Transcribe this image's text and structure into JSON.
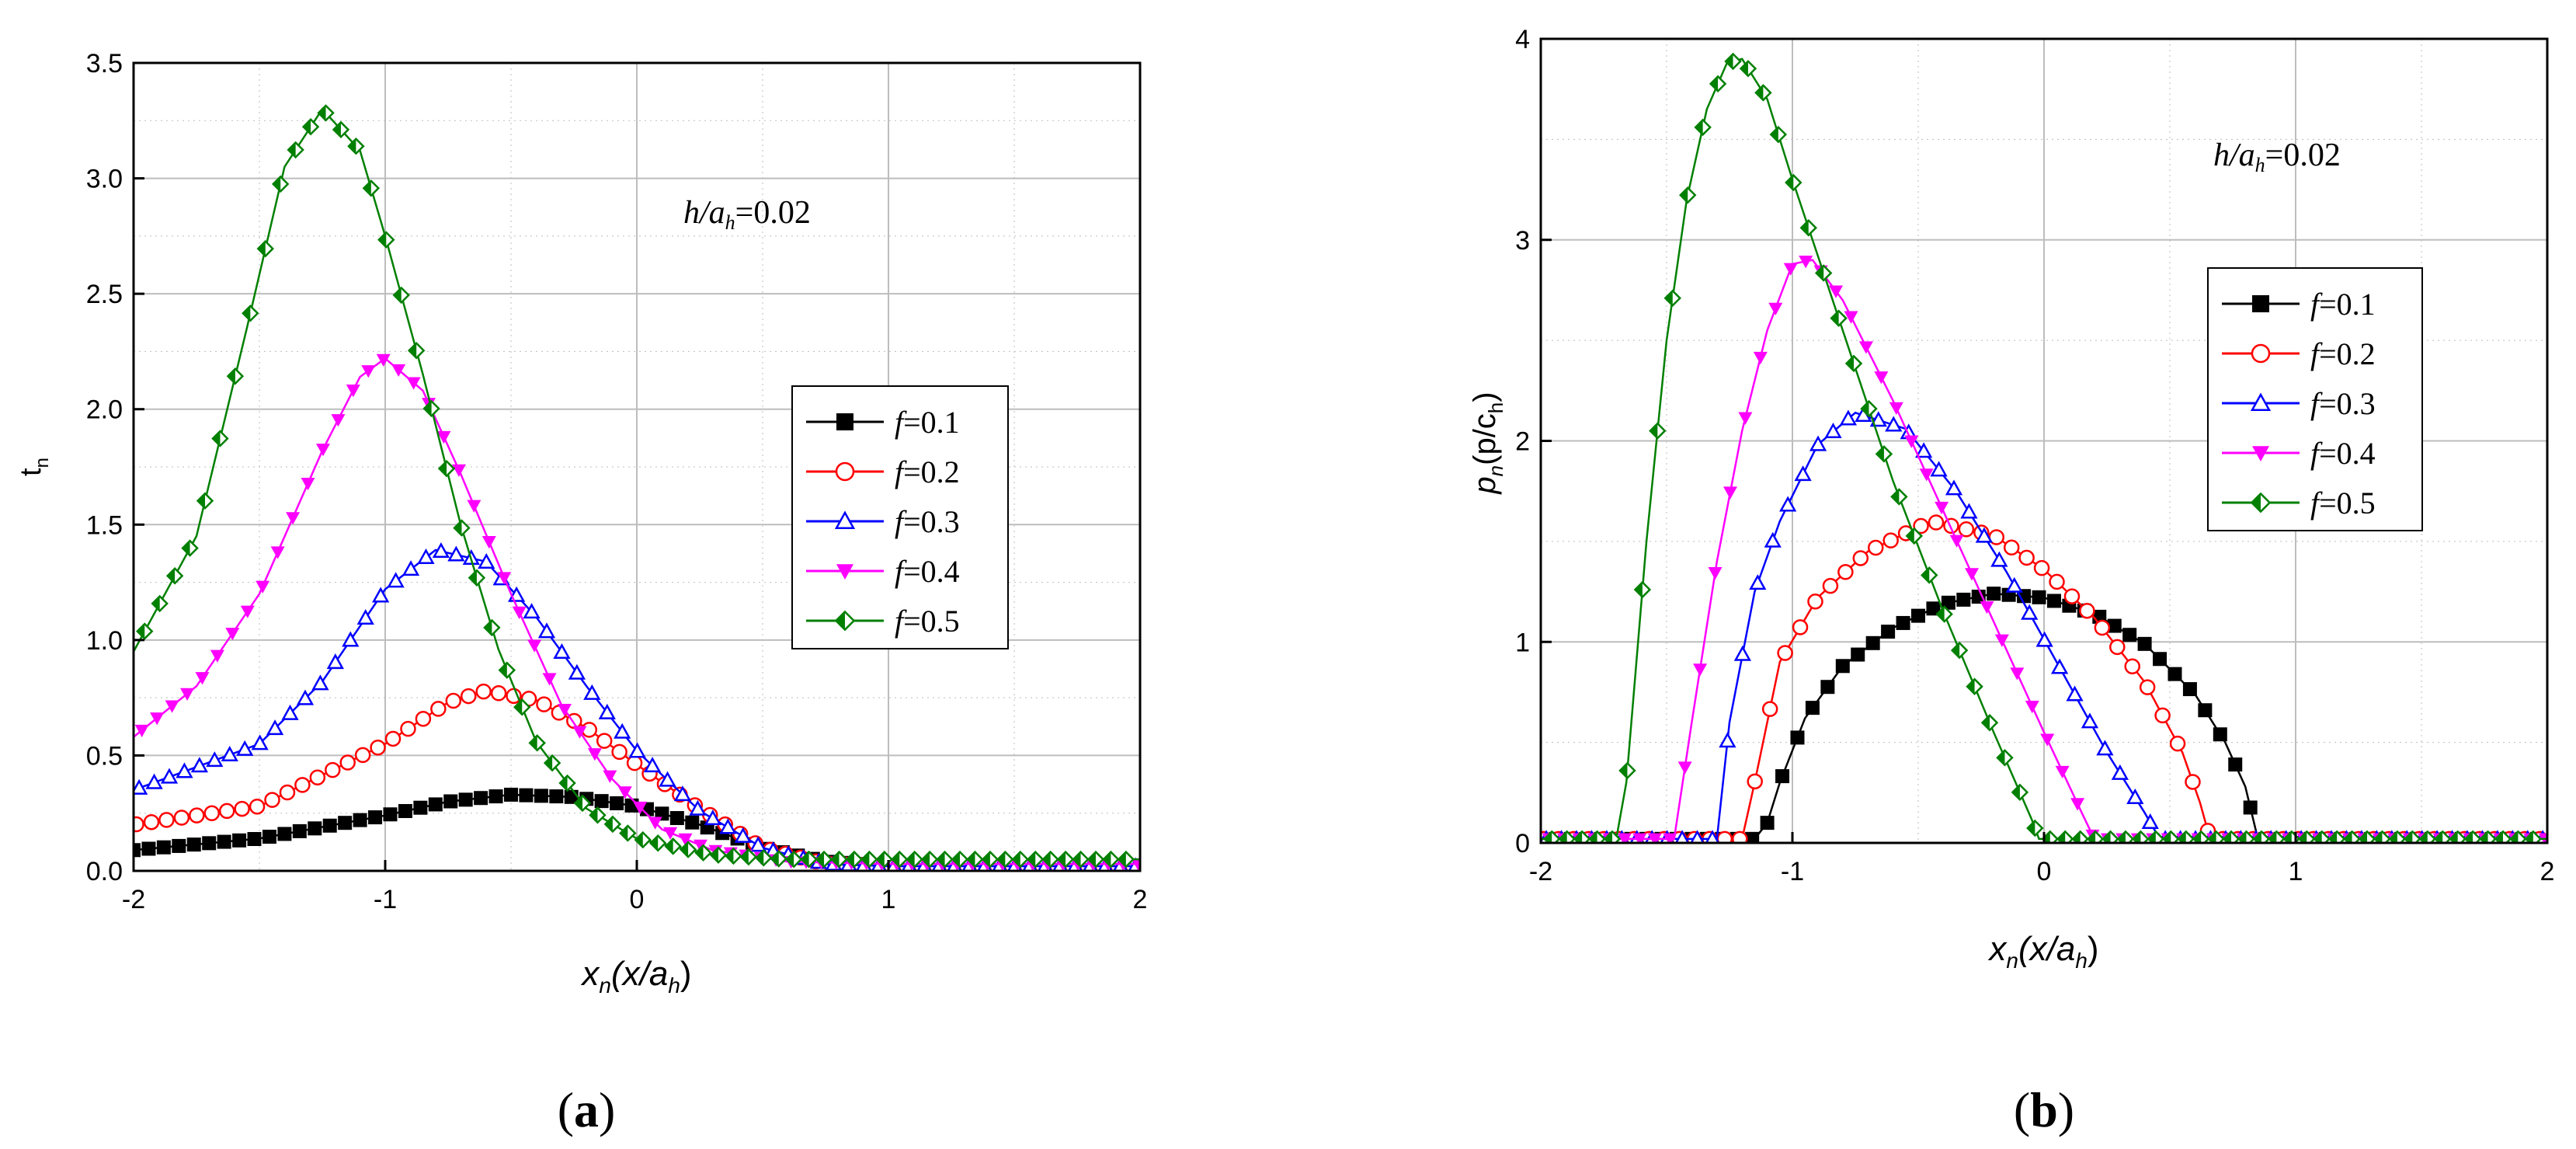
{
  "figure": {
    "panels": [
      {
        "caption_open": "(",
        "caption_letter": "a",
        "caption_close": ")",
        "annotation": {
          "italic": "h/a",
          "sub": "h",
          "rest": "=0.02"
        },
        "ylabel": {
          "main": "t",
          "sub": "n"
        },
        "xlabel": {
          "main": "x",
          "sub": "n",
          "paren": "(x/a",
          "psub": "h",
          "close": ")"
        }
      },
      {
        "caption_open": "(",
        "caption_letter": "b",
        "caption_close": ")",
        "annotation": {
          "italic": "h/a",
          "sub": "h",
          "rest": "=0.02"
        },
        "ylabel": {
          "main": "p",
          "sub": "n",
          "paren": "(p/c",
          "psub": "h",
          "close": ")"
        },
        "xlabel": {
          "main": "x",
          "sub": "n",
          "paren": "(x/a",
          "psub": "h",
          "close": ")"
        }
      }
    ]
  },
  "colors": {
    "f01": "#000000",
    "f02": "#ff0000",
    "f03": "#0000ff",
    "f04": "#ff00ff",
    "f05": "#008000",
    "grid": "#bdbdbd"
  },
  "chart_data": [
    {
      "type": "line",
      "xlim": [
        -2,
        2
      ],
      "ylim": [
        0,
        3.5
      ],
      "xticks": [
        "-2",
        "-1",
        "0",
        "1",
        "2"
      ],
      "yticks": [
        "0.0",
        "0.5",
        "1.0",
        "1.5",
        "2.0",
        "2.5",
        "3.0",
        "3.5"
      ],
      "grid": true,
      "legend_position": "right-middle",
      "series": [
        {
          "name": "f=0.1",
          "marker": "square-filled",
          "color": "#000000",
          "x": [
            -2.0,
            -1.5,
            -1.0,
            -0.75,
            -0.5,
            -0.25,
            0.0,
            0.25,
            0.5,
            0.75,
            1.0,
            2.0
          ],
          "y": [
            0.09,
            0.14,
            0.24,
            0.3,
            0.33,
            0.32,
            0.28,
            0.2,
            0.1,
            0.04,
            0.02,
            0.02
          ]
        },
        {
          "name": "f=0.2",
          "marker": "circle-open",
          "color": "#ff0000",
          "x": [
            -2.0,
            -1.5,
            -1.0,
            -0.75,
            -0.6,
            -0.4,
            -0.2,
            0.0,
            0.25,
            0.5,
            0.75,
            1.0,
            2.0
          ],
          "y": [
            0.2,
            0.28,
            0.55,
            0.73,
            0.78,
            0.74,
            0.62,
            0.46,
            0.27,
            0.1,
            0.03,
            0.02,
            0.02
          ]
        },
        {
          "name": "f=0.3",
          "marker": "triangle-up-open",
          "color": "#0000ff",
          "x": [
            -2.0,
            -1.5,
            -1.25,
            -1.0,
            -0.8,
            -0.6,
            -0.4,
            -0.2,
            0.0,
            0.25,
            0.5,
            0.75,
            1.0,
            2.0
          ],
          "y": [
            0.35,
            0.55,
            0.82,
            1.22,
            1.39,
            1.34,
            1.1,
            0.8,
            0.52,
            0.26,
            0.1,
            0.03,
            0.02,
            0.02
          ]
        },
        {
          "name": "f=0.4",
          "marker": "triangle-down-filled",
          "color": "#ff00ff",
          "x": [
            -2.0,
            -1.75,
            -1.5,
            -1.25,
            -1.1,
            -1.0,
            -0.85,
            -0.7,
            -0.5,
            -0.3,
            -0.1,
            0.1,
            0.3,
            0.6,
            1.0,
            2.0
          ],
          "y": [
            0.58,
            0.8,
            1.2,
            1.82,
            2.14,
            2.22,
            2.08,
            1.72,
            1.2,
            0.72,
            0.4,
            0.18,
            0.09,
            0.04,
            0.03,
            0.03
          ]
        },
        {
          "name": "f=0.5",
          "marker": "diamond-half",
          "color": "#008000",
          "x": [
            -2.0,
            -1.75,
            -1.55,
            -1.4,
            -1.25,
            -1.1,
            -1.0,
            -0.85,
            -0.7,
            -0.55,
            -0.4,
            -0.2,
            0.0,
            0.3,
            0.6,
            1.0,
            2.0
          ],
          "y": [
            0.95,
            1.45,
            2.35,
            3.05,
            3.3,
            3.12,
            2.75,
            2.15,
            1.5,
            0.96,
            0.56,
            0.27,
            0.14,
            0.07,
            0.05,
            0.05,
            0.05
          ]
        }
      ]
    },
    {
      "type": "line",
      "xlim": [
        -2,
        2
      ],
      "ylim": [
        0,
        4
      ],
      "xticks": [
        "-2",
        "-1",
        "0",
        "1",
        "2"
      ],
      "yticks": [
        "0",
        "1",
        "2",
        "3",
        "4"
      ],
      "grid": true,
      "legend_position": "right-upper",
      "series": [
        {
          "name": "f=0.1",
          "marker": "square-filled",
          "color": "#000000",
          "x": [
            -2.0,
            -1.15,
            -1.1,
            -1.05,
            -0.95,
            -0.8,
            -0.6,
            -0.4,
            -0.2,
            0.0,
            0.2,
            0.4,
            0.6,
            0.72,
            0.8,
            0.85,
            2.0
          ],
          "y": [
            0.02,
            0.02,
            0.1,
            0.3,
            0.62,
            0.88,
            1.07,
            1.19,
            1.24,
            1.22,
            1.14,
            0.99,
            0.74,
            0.5,
            0.28,
            0.02,
            0.02
          ]
        },
        {
          "name": "f=0.2",
          "marker": "circle-open",
          "color": "#ff0000",
          "x": [
            -2.0,
            -1.2,
            -1.15,
            -1.05,
            -0.9,
            -0.7,
            -0.45,
            -0.2,
            0.0,
            0.2,
            0.4,
            0.55,
            0.62,
            0.66,
            2.0
          ],
          "y": [
            0.02,
            0.02,
            0.3,
            0.9,
            1.22,
            1.45,
            1.6,
            1.53,
            1.36,
            1.12,
            0.8,
            0.45,
            0.2,
            0.02,
            0.02
          ]
        },
        {
          "name": "f=0.3",
          "marker": "triangle-up-open",
          "color": "#0000ff",
          "x": [
            -2.0,
            -1.3,
            -1.25,
            -1.15,
            -1.05,
            -0.9,
            -0.75,
            -0.55,
            -0.35,
            -0.15,
            0.05,
            0.25,
            0.4,
            0.46,
            2.0
          ],
          "y": [
            0.02,
            0.02,
            0.6,
            1.25,
            1.6,
            1.98,
            2.14,
            2.06,
            1.75,
            1.35,
            0.9,
            0.45,
            0.15,
            0.02,
            0.02
          ]
        },
        {
          "name": "f=0.4",
          "marker": "triangle-down-filled",
          "color": "#ff00ff",
          "x": [
            -2.0,
            -1.47,
            -1.4,
            -1.3,
            -1.2,
            -1.1,
            -1.0,
            -0.92,
            -0.8,
            -0.6,
            -0.4,
            -0.2,
            0.0,
            0.15,
            0.2,
            2.0
          ],
          "y": [
            0.02,
            0.02,
            0.6,
            1.4,
            2.05,
            2.55,
            2.88,
            2.9,
            2.7,
            2.2,
            1.65,
            1.1,
            0.55,
            0.15,
            0.02,
            0.02
          ]
        },
        {
          "name": "f=0.5",
          "marker": "diamond-half",
          "color": "#008000",
          "x": [
            -2.0,
            -1.7,
            -1.66,
            -1.58,
            -1.5,
            -1.42,
            -1.34,
            -1.26,
            -1.2,
            -1.1,
            -1.0,
            -0.8,
            -0.6,
            -0.4,
            -0.2,
            -0.05,
            -0.02,
            2.0
          ],
          "y": [
            0.02,
            0.02,
            0.3,
            1.5,
            2.5,
            3.2,
            3.65,
            3.88,
            3.9,
            3.7,
            3.3,
            2.55,
            1.8,
            1.15,
            0.55,
            0.12,
            0.02,
            0.02
          ]
        }
      ]
    }
  ]
}
